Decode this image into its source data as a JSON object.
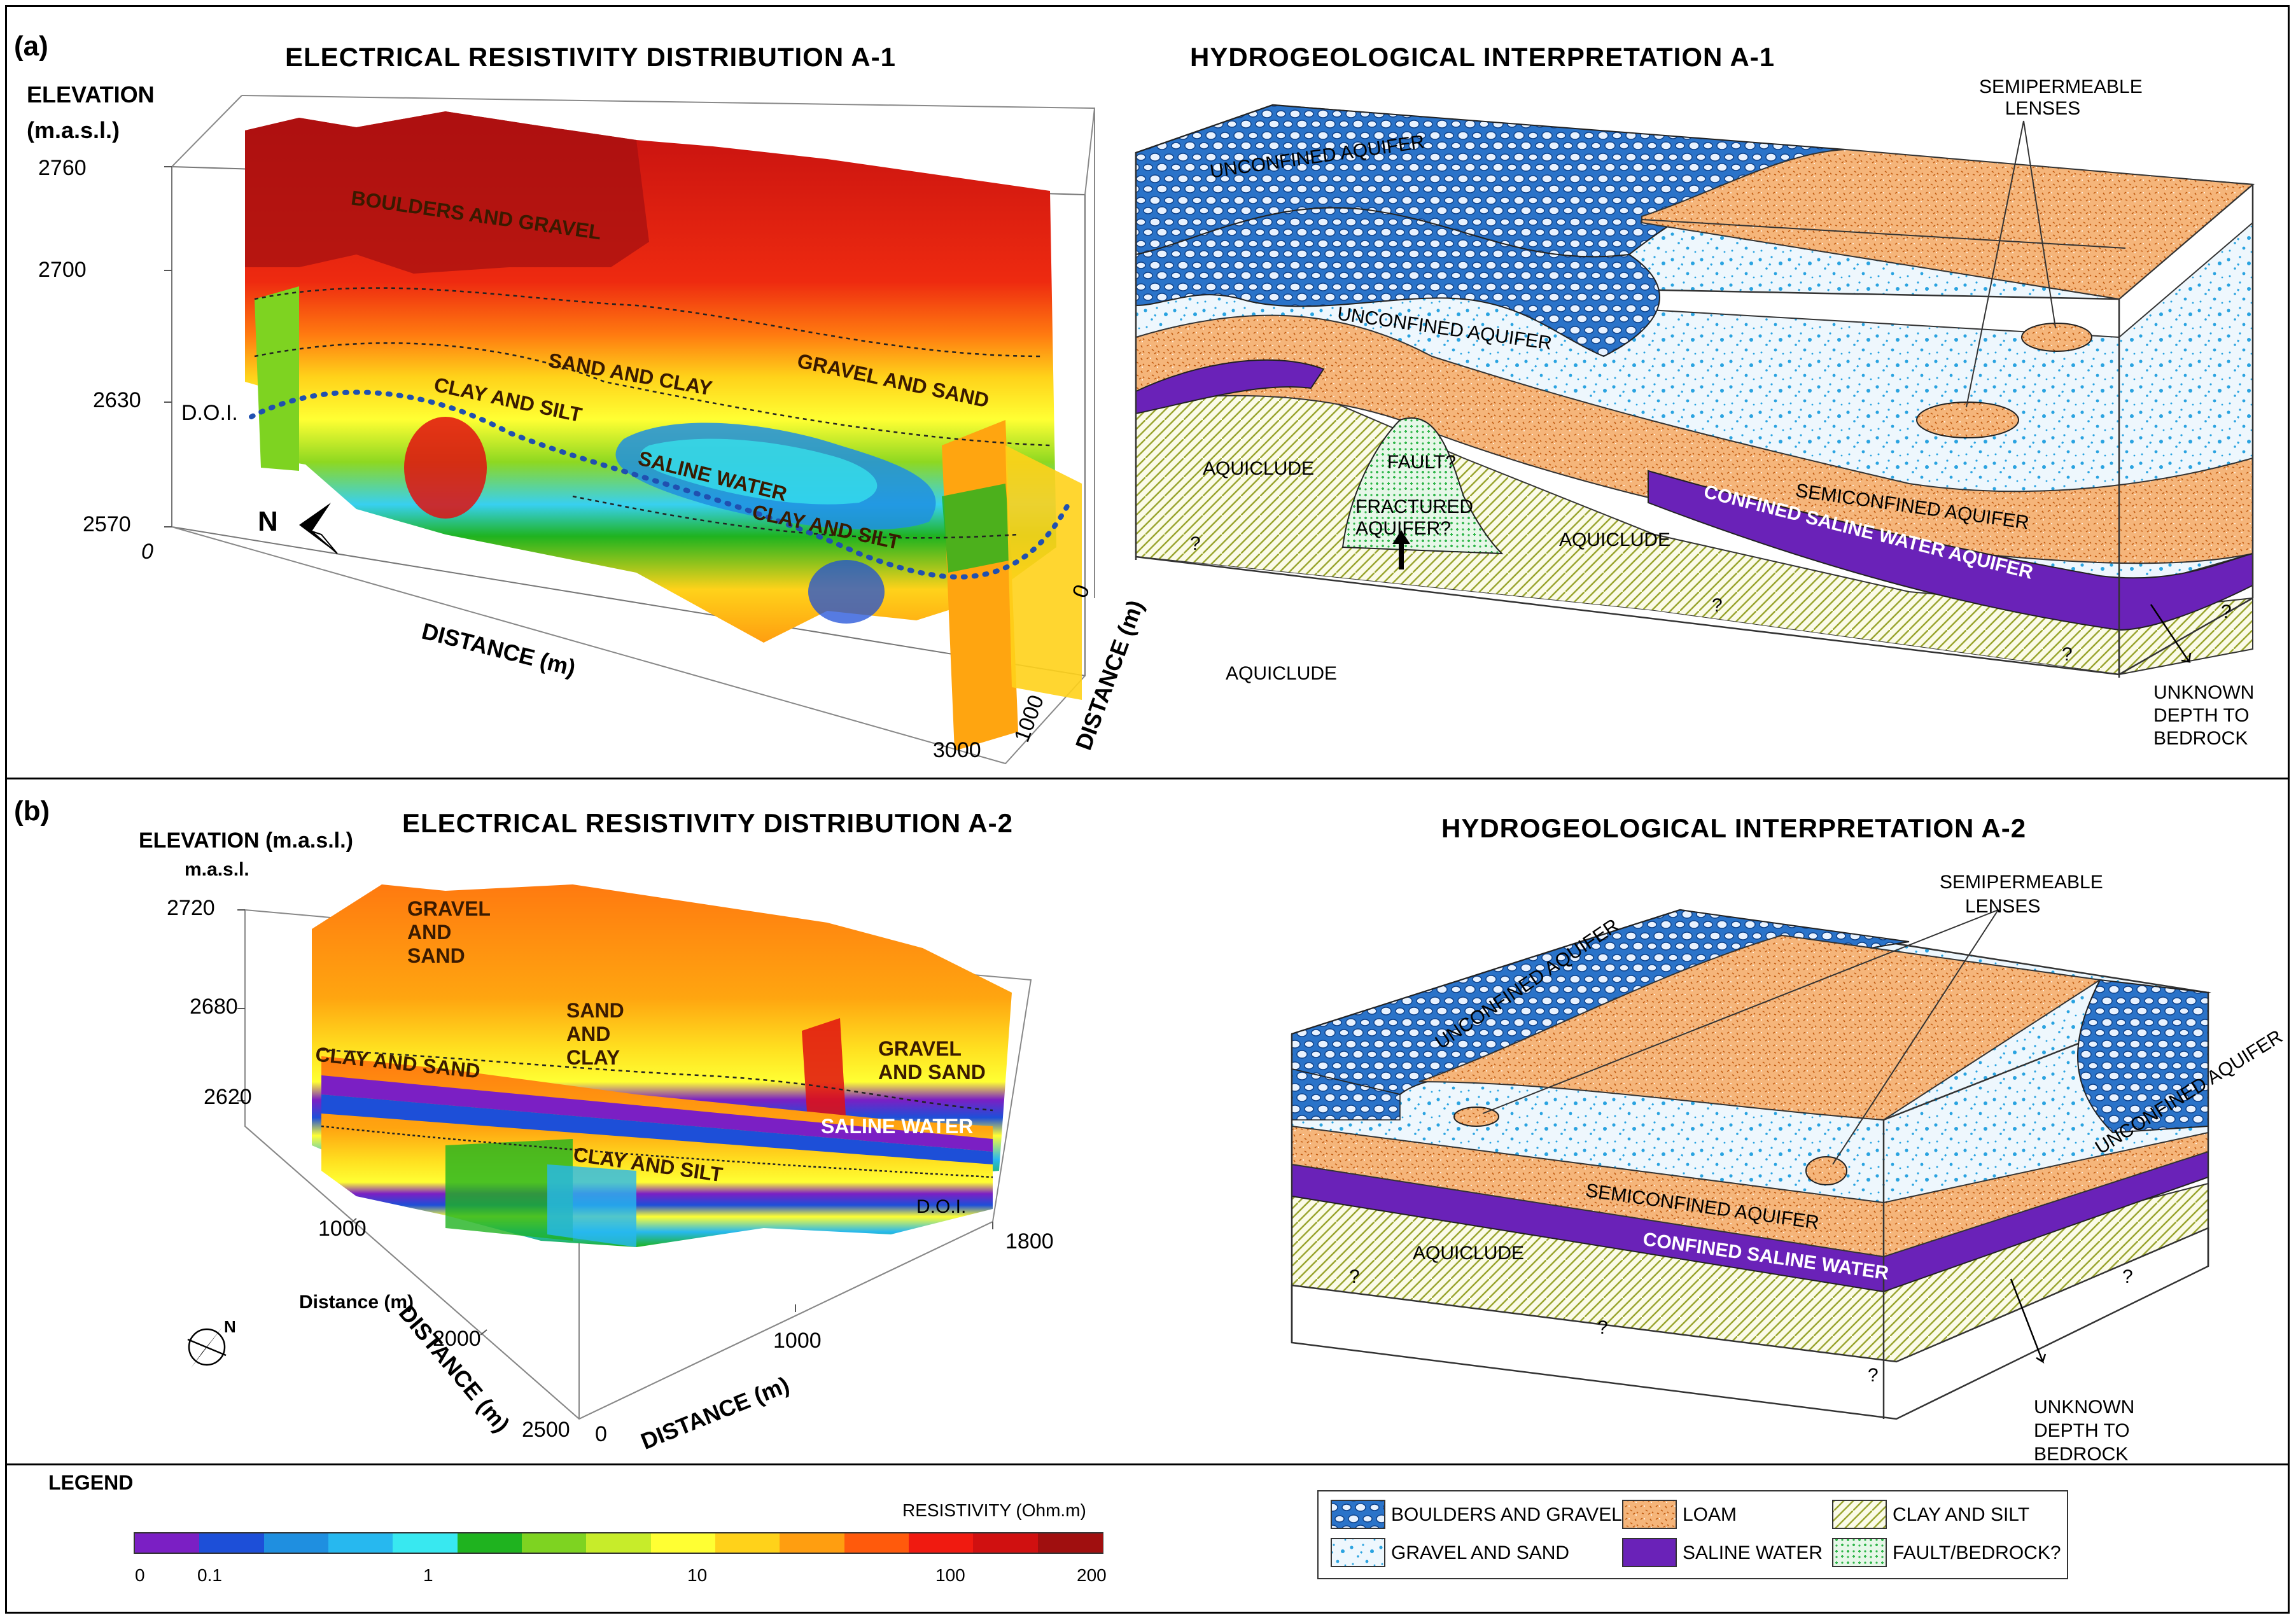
{
  "panel_a": {
    "label": "(a)",
    "resistivity_title": "ELECTRICAL RESISTIVITY DISTRIBUTION A-1",
    "interpretation_title": "HYDROGEOLOGICAL INTERPRETATION A-1",
    "elevation_label_1": "ELEVATION",
    "elevation_label_2": "(m.a.s.l.)",
    "elev_ticks": [
      "2760",
      "2700",
      "2630",
      "2570"
    ],
    "x_zero": "0",
    "x_axis_label": "DISTANCE (m)",
    "x_end": "3000",
    "y_axis_label": "DISTANCE (m)",
    "y_ticks": [
      "0",
      "1000"
    ],
    "doi": "D.O.I.",
    "north": "N",
    "res_labels": {
      "boulders": "BOULDERS AND GRAVEL",
      "sand_clay": "SAND AND CLAY",
      "gravel_sand": "GRAVEL AND SAND",
      "clay_silt_1": "CLAY AND SILT",
      "saline": "SALINE WATER",
      "clay_silt_2": "CLAY AND SILT"
    },
    "interp_labels": {
      "unconfined_1": "UNCONFINED AQUIFER",
      "unconfined_2": "UNCONFINED AQUIFER",
      "semipermeable": "SEMIPERMEABLE LENSES",
      "aquiclude_1": "AQUICLUDE",
      "fault": "FAULT?",
      "fractured": "FRACTURED AQUIFER?",
      "aquiclude_2": "AQUICLUDE",
      "semiconfined": "SEMICONFINED AQUIFER",
      "confined_saline": "CONFINED SALINE WATER AQUIFER",
      "aquiclude_3": "AQUICLUDE",
      "unknown_1": "UNKNOWN",
      "unknown_2": "DEPTH TO",
      "unknown_3": "BEDROCK",
      "q": "?"
    }
  },
  "panel_b": {
    "label": "(b)",
    "resistivity_title": "ELECTRICAL RESISTIVITY DISTRIBUTION A-2",
    "interpretation_title": "HYDROGEOLOGICAL INTERPRETATION A-2",
    "elevation_label": "ELEVATION (m.a.s.l.)",
    "elevation_unit": "m.a.s.l.",
    "elev_ticks": [
      "2720",
      "2680",
      "2620"
    ],
    "dist_ticks_left": [
      "1000",
      "2000",
      "2500"
    ],
    "dist_small_label": "Distance (m)",
    "dist_label_left": "DISTANCE (m)",
    "dist_ticks_right": [
      "0",
      "1000",
      "1800"
    ],
    "dist_label_right": "DISTANCE (m)",
    "doi": "D.O.I.",
    "north": "N",
    "res_labels": {
      "gravel_sand_1": "GRAVEL AND SAND",
      "sand_clay": "SAND AND CLAY",
      "gravel_sand_2": "GRAVEL AND SAND",
      "clay_sand": "CLAY AND SAND",
      "saline": "SALINE WATER",
      "clay_silt": "CLAY AND SILT"
    },
    "interp_labels": {
      "unconfined_1": "UNCONFINED AQUIFER",
      "unconfined_2": "UNCONFINED AQUIFER",
      "semipermeable_1": "SEMIPERMEABLE",
      "semipermeable_2": "LENSES",
      "semiconfined": "SEMICONFINED AQUIFER",
      "aquiclude": "AQUICLUDE",
      "confined_saline": "CONFINED SALINE WATER",
      "unknown_1": "UNKNOWN",
      "unknown_2": "DEPTH TO",
      "unknown_3": "BEDROCK",
      "q": "?"
    }
  },
  "legend": {
    "title": "LEGEND",
    "scale_title": "RESISTIVITY (Ohm.m)",
    "scale_ticks": [
      "0",
      "0.1",
      "1",
      "10",
      "100",
      "200"
    ],
    "colorbar": [
      "#7b1fc4",
      "#1d4fd8",
      "#1f8fe0",
      "#27b8ef",
      "#38e8f0",
      "#1fb31f",
      "#7ed321",
      "#c7ec2a",
      "#ffff33",
      "#ffd21a",
      "#ff9e10",
      "#ff5a0c",
      "#f01a10",
      "#d01010",
      "#a00f0f"
    ],
    "items": [
      {
        "label": "BOULDERS AND GRAVEL",
        "swatch": "boulders"
      },
      {
        "label": "LOAM",
        "swatch": "loam"
      },
      {
        "label": "CLAY AND SILT",
        "swatch": "clay"
      },
      {
        "label": "GRAVEL AND SAND",
        "swatch": "gravel"
      },
      {
        "label": "SALINE WATER",
        "swatch": "saline"
      },
      {
        "label": "FAULT/BEDROCK?",
        "swatch": "fault"
      }
    ]
  },
  "colors": {
    "boulders_blue": "#2a73c9",
    "loam_orange": "#f2a35e",
    "clay_green": "#a7b43a",
    "saline_purple": "#6a22b8",
    "gravel_dot": "#2aa3e0",
    "fault_green": "#2fb64a"
  }
}
